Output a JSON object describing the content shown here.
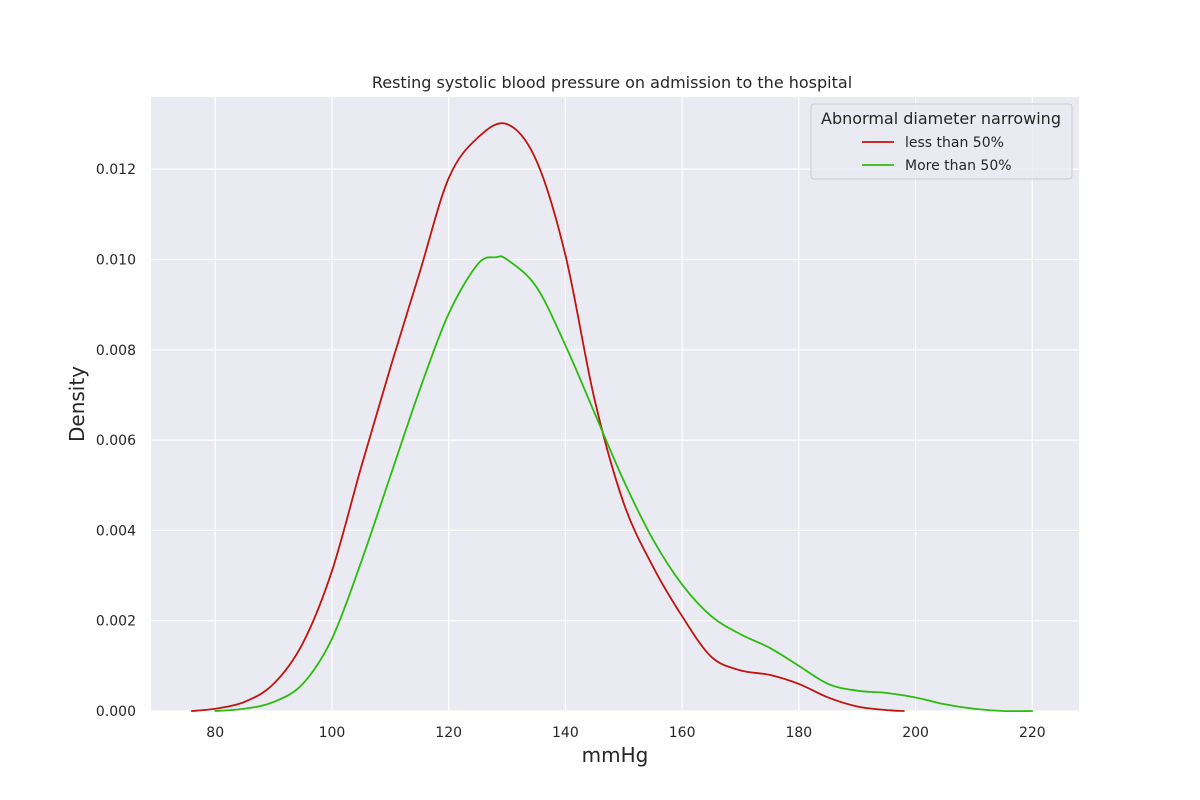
{
  "chart_data": {
    "type": "line",
    "title": "Resting systolic blood pressure on admission to the hospital",
    "xlabel": "mmHg",
    "ylabel": "Density",
    "xlim": [
      69,
      228
    ],
    "ylim": [
      0,
      0.0136
    ],
    "xticks": [
      80,
      100,
      120,
      140,
      160,
      180,
      200,
      220
    ],
    "xtick_labels": [
      "80",
      "100",
      "120",
      "140",
      "160",
      "180",
      "200",
      "220"
    ],
    "yticks": [
      0,
      0.002,
      0.004,
      0.006,
      0.008,
      0.01,
      0.012
    ],
    "ytick_labels": [
      "0.000",
      "0.002",
      "0.004",
      "0.006",
      "0.008",
      "0.010",
      "0.012"
    ],
    "grid": true,
    "background": "#eaeaf2",
    "grid_color": "#ffffff",
    "legend": {
      "title": "Abnormal diameter narrowing",
      "position": "top-right"
    },
    "series": [
      {
        "name": "less than 50%",
        "color": "#c0140f",
        "x": [
          76,
          80,
          85,
          90,
          95,
          100,
          105,
          110,
          115,
          120,
          125,
          130,
          135,
          140,
          145,
          150,
          155,
          160,
          165,
          170,
          175,
          180,
          185,
          190,
          195,
          198
        ],
        "y": [
          0.0,
          5e-05,
          0.0002,
          0.0006,
          0.0015,
          0.0031,
          0.0054,
          0.0076,
          0.0097,
          0.0118,
          0.0127,
          0.013,
          0.0122,
          0.0101,
          0.0069,
          0.0046,
          0.0032,
          0.0021,
          0.0012,
          0.0009,
          0.0008,
          0.0006,
          0.0003,
          0.0001,
          2e-05,
          0.0
        ]
      },
      {
        "name": "More than 50%",
        "color": "#2bbc0e",
        "x": [
          80,
          85,
          90,
          95,
          100,
          105,
          110,
          115,
          120,
          125,
          128,
          130,
          135,
          140,
          145,
          150,
          155,
          160,
          165,
          170,
          175,
          180,
          185,
          190,
          195,
          200,
          205,
          210,
          215,
          220
        ],
        "y": [
          0.0,
          5e-05,
          0.0002,
          0.0006,
          0.0016,
          0.0033,
          0.0052,
          0.0071,
          0.0088,
          0.0099,
          0.01005,
          0.01,
          0.0094,
          0.0081,
          0.0066,
          0.0051,
          0.0038,
          0.0028,
          0.0021,
          0.0017,
          0.0014,
          0.001,
          0.0006,
          0.00045,
          0.0004,
          0.0003,
          0.00015,
          5e-05,
          0.0,
          0.0
        ]
      }
    ]
  }
}
